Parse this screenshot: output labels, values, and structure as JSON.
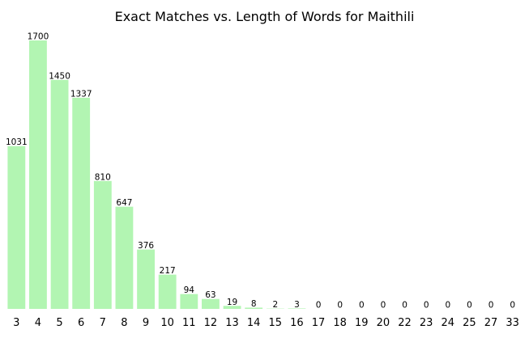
{
  "chart_data": {
    "type": "bar",
    "title": "Exact Matches vs. Length of Words for Maithili",
    "xlabel": "",
    "ylabel": "",
    "categories": [
      "3",
      "4",
      "5",
      "6",
      "7",
      "8",
      "9",
      "10",
      "11",
      "12",
      "13",
      "14",
      "15",
      "16",
      "17",
      "18",
      "19",
      "20",
      "22",
      "23",
      "24",
      "25",
      "27",
      "33"
    ],
    "values": [
      1031,
      1700,
      1450,
      1337,
      810,
      647,
      376,
      217,
      94,
      63,
      19,
      8,
      2,
      3,
      0,
      0,
      0,
      0,
      0,
      0,
      0,
      0,
      0,
      0
    ],
    "ylim": [
      0,
      1700
    ],
    "bar_color": "#b2f5b2",
    "grid": false,
    "legend": "none",
    "data_labels": true
  }
}
